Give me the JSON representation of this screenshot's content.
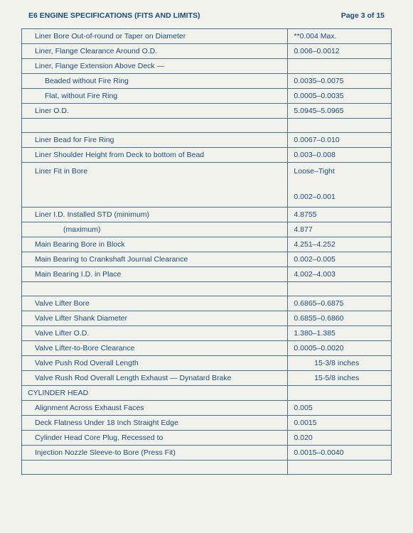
{
  "header": {
    "title": "E6 ENGINE SPECIFICATIONS (FITS AND LIMITS)",
    "page": "Page 3 of 15"
  },
  "rows": [
    {
      "label": "Liner Bore Out-of-round or Taper on Diameter",
      "value": "**0.004 Max.",
      "labelClass": "indent1"
    },
    {
      "label": "Liner, Flange Clearance Around O.D.",
      "value": "0.006–0.0012",
      "labelClass": "indent1"
    },
    {
      "label": "Liner, Flange Extension Above Deck —",
      "value": "",
      "labelClass": "indent1"
    },
    {
      "label": "Beaded without Fire Ring",
      "value": "0.0035–0.0075",
      "labelClass": "indent2"
    },
    {
      "label": "Flat, without Fire Ring",
      "value": "0.0005–0.0035",
      "labelClass": "indent2"
    },
    {
      "label": "Liner O.D.",
      "value": "5.0945–5.0965",
      "labelClass": "indent1"
    },
    {
      "label": "",
      "value": "",
      "labelClass": "blank"
    },
    {
      "label": "Liner Bead for Fire Ring",
      "value": "0.0067–0.010",
      "labelClass": "indent1"
    },
    {
      "label": "Liner Shoulder Height from Deck to bottom of Bead",
      "value": "0.003–0.008",
      "labelClass": "indent1"
    },
    {
      "label": "Liner Fit in Bore",
      "value": "Loose–Tight\n\n0.002–0.001",
      "labelClass": "indent1",
      "tall": true
    },
    {
      "label": "Liner I.D. Installed STD (minimum)",
      "value": "4.8755",
      "labelClass": "indent1"
    },
    {
      "label": "(maximum)",
      "value": "4.877",
      "labelClass": "indent3"
    },
    {
      "label": "Main Bearing Bore in Block",
      "value": "4.251–4.252",
      "labelClass": "indent1"
    },
    {
      "label": "Main Bearing to Crankshaft Journal Clearance",
      "value": "0.002–0.005",
      "labelClass": "indent1"
    },
    {
      "label": "Main Bearing I.D. in Place",
      "value": "4.002–4.003",
      "labelClass": "indent1"
    },
    {
      "label": "",
      "value": "",
      "labelClass": "blank"
    },
    {
      "label": "Valve Lifter Bore",
      "value": "0.6865–0.6875",
      "labelClass": "indent1"
    },
    {
      "label": "Valve Lifter Shank Diameter",
      "value": "0.6855–0.6860",
      "labelClass": "indent1"
    },
    {
      "label": "Valve Lifter O.D.",
      "value": "1.380–1.385",
      "labelClass": "indent1"
    },
    {
      "label": "Valve Lifter-to-Bore Clearance",
      "value": "0.0005–0.0020",
      "labelClass": "indent1"
    },
    {
      "label": "Valve Push Rod Overall Length",
      "value": "15-3/8 inches",
      "labelClass": "indent1",
      "valueClass": "center"
    },
    {
      "label": "Valve Rush Rod Overall Length Exhaust — Dynatard Brake",
      "value": "15-5/8 inches",
      "labelClass": "indent1",
      "valueClass": "center",
      "wrap": true
    },
    {
      "label": "CYLINDER HEAD",
      "value": "",
      "labelClass": "no-indent"
    },
    {
      "label": "Alignment Across Exhaust Faces",
      "value": "0.005",
      "labelClass": "indent1"
    },
    {
      "label": "Deck Flatness Under 18 Inch Straight Edge",
      "value": "0.0015",
      "labelClass": "indent1"
    },
    {
      "label": "Cylinder Head Core Plug, Recessed to",
      "value": "0.020",
      "labelClass": "indent1"
    },
    {
      "label": "Injection Nozzle Sleeve-to Bore (Press Fit)",
      "value": "0.0015–0.0040",
      "labelClass": "indent1"
    },
    {
      "label": "",
      "value": "",
      "labelClass": "blank"
    }
  ]
}
